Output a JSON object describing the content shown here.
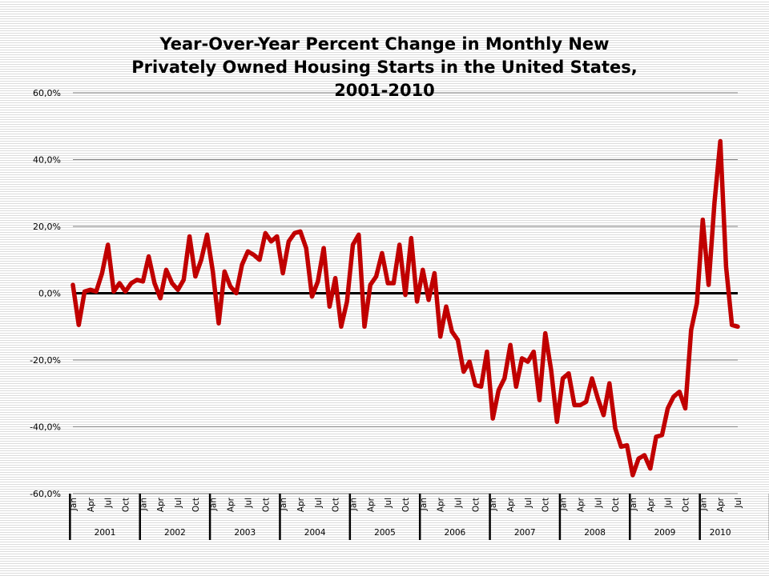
{
  "chart_data": {
    "type": "line",
    "title_lines": [
      "Year-Over-Year Percent Change in Monthly New",
      "Privately Owned Housing Starts in the United States,",
      "2001-2010"
    ],
    "ylim": [
      -60,
      60
    ],
    "ytick_values": [
      60,
      40,
      20,
      0,
      -20,
      -40,
      -60
    ],
    "ytick_labels": [
      "60,0%",
      "40,0%",
      "20,0%",
      "0,0%",
      "-20,0%",
      "-40,0%",
      "-60,0%"
    ],
    "grid": true,
    "month_tick_labels": [
      "Jan",
      "Apr",
      "Jul",
      "Oct"
    ],
    "years": [
      "2001",
      "2002",
      "2003",
      "2004",
      "2005",
      "2006",
      "2007",
      "2008",
      "2009",
      "2010"
    ],
    "last_period": "Jul 2010",
    "colors": {
      "line": "#c00000",
      "zero_line": "#000000",
      "grid": "#808080"
    },
    "values": [
      2.5,
      -9.5,
      0.5,
      1.0,
      0.5,
      6.0,
      14.5,
      0.5,
      3.0,
      0.5,
      3.0,
      4.0,
      3.5,
      11.0,
      3.0,
      -1.5,
      7.0,
      3.0,
      1.0,
      4.0,
      17.0,
      5.0,
      10.0,
      17.5,
      6.5,
      -9.0,
      6.5,
      2.0,
      0.0,
      8.5,
      12.5,
      11.5,
      10.0,
      18.0,
      15.5,
      17.0,
      6.0,
      15.5,
      18.0,
      18.5,
      13.5,
      -1.0,
      3.5,
      13.5,
      -4.0,
      4.5,
      -10.0,
      -2.5,
      14.5,
      17.5,
      -10.0,
      2.5,
      5.0,
      12.0,
      3.0,
      3.0,
      14.5,
      -0.5,
      16.5,
      -2.5,
      7.0,
      -2.0,
      6.0,
      -13.0,
      -4.0,
      -11.5,
      -14.0,
      -23.5,
      -20.5,
      -27.5,
      -28.0,
      -17.5,
      -37.5,
      -29.0,
      -25.5,
      -15.5,
      -28.0,
      -19.5,
      -20.5,
      -17.5,
      -32.0,
      -12.0,
      -23.0,
      -38.5,
      -25.5,
      -24.0,
      -33.5,
      -33.5,
      -32.5,
      -25.5,
      -31.5,
      -36.5,
      -27.0,
      -40.5,
      -46.0,
      -45.5,
      -54.5,
      -49.5,
      -48.5,
      -52.5,
      -43.0,
      -42.5,
      -34.5,
      -31.0,
      -29.5,
      -34.5,
      -11.0,
      -3.0,
      22.0,
      2.5,
      27.0,
      45.5,
      8.0,
      -9.5,
      -10.0
    ]
  }
}
